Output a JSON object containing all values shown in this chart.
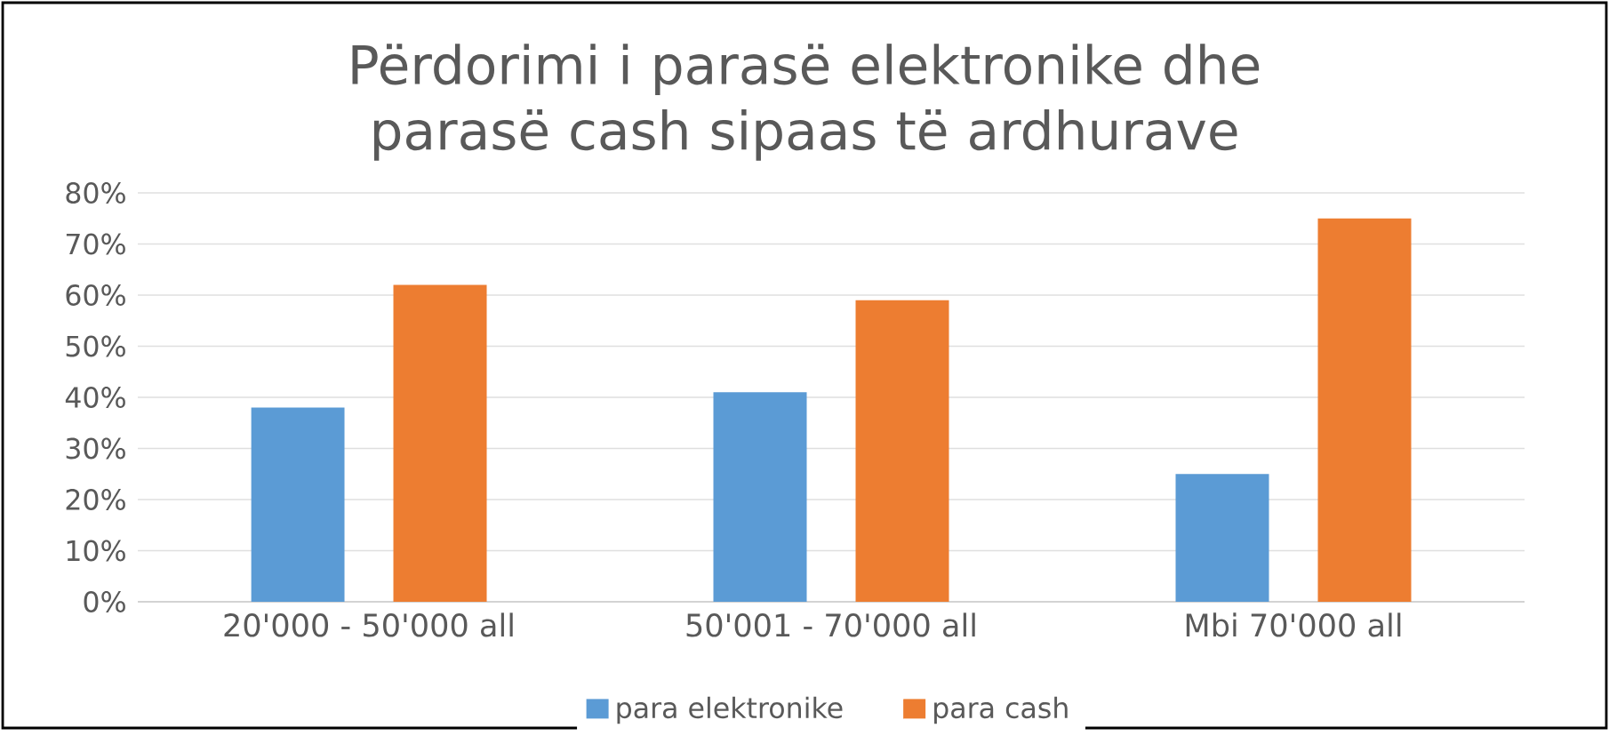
{
  "chart_data": {
    "type": "bar",
    "title": "Përdorimi i parasë elektronike dhe parasë cash sipaas të ardhurave",
    "categories": [
      "20'000 - 50'000 all",
      "50'001 - 70'000 all",
      "Mbi 70'000 all"
    ],
    "series": [
      {
        "name": "para elektronike",
        "color": "#5b9bd5",
        "values": [
          38,
          41,
          25
        ]
      },
      {
        "name": "para cash",
        "color": "#ed7d31",
        "values": [
          62,
          59,
          75
        ]
      }
    ],
    "ylim": [
      0,
      80
    ],
    "yticks": [
      {
        "value": 0,
        "label": "0%"
      },
      {
        "value": 10,
        "label": "10%"
      },
      {
        "value": 20,
        "label": "20%"
      },
      {
        "value": 30,
        "label": "30%"
      },
      {
        "value": 40,
        "label": "40%"
      },
      {
        "value": 50,
        "label": "50%"
      },
      {
        "value": 60,
        "label": "60%"
      },
      {
        "value": 70,
        "label": "70%"
      },
      {
        "value": 80,
        "label": "80%"
      }
    ],
    "grid": "y",
    "legend": "bottom"
  }
}
